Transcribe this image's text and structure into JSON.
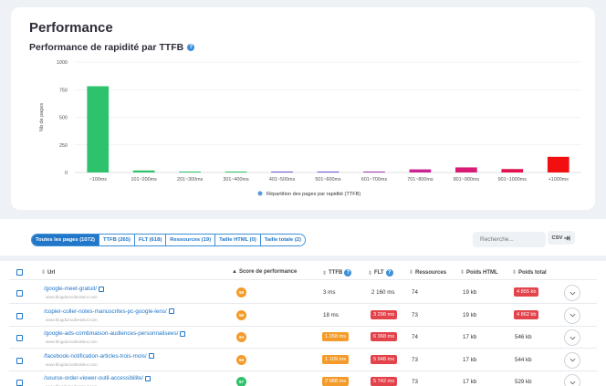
{
  "page_title": "Performance",
  "chart_title": "Performance de rapidité par TTFB",
  "help_icon": "?",
  "chart_data": {
    "type": "bar",
    "categories": [
      "~100ms",
      "101~200ms",
      "201~300ms",
      "301~400ms",
      "401~500ms",
      "501~600ms",
      "601~700ms",
      "701~800ms",
      "801~900ms",
      "901~1000ms",
      "+1000ms"
    ],
    "values": [
      781,
      18,
      1,
      1,
      2,
      6,
      8,
      28,
      46,
      31,
      142
    ],
    "colors": [
      "#2ec26c",
      "#2ec26c",
      "#2ec26c",
      "#2ec26c",
      "#6a56d6",
      "#6a56d6",
      "#a33ca8",
      "#c8238f",
      "#d81b74",
      "#e3124f",
      "#f20f10"
    ],
    "yticks": [
      "0",
      "250",
      "500",
      "750",
      "1000"
    ],
    "ylim": [
      0,
      1000
    ],
    "ylabel": "Nb de pages",
    "legend": "Répartition des pages par rapidité (TTFB)",
    "legend_color": "#5b9bd5",
    "grid": true
  },
  "tabs": [
    {
      "label": "Toutes les pages (1072)",
      "active": true
    },
    {
      "label": "TTFB (265)",
      "active": false
    },
    {
      "label": "FLT (618)",
      "active": false
    },
    {
      "label": "Ressources (19)",
      "active": false
    },
    {
      "label": "Taille HTML (0)",
      "active": false
    },
    {
      "label": "Taille totale (2)",
      "active": false
    }
  ],
  "search": {
    "placeholder": "Recherche..."
  },
  "csv_label": "CSV",
  "table": {
    "headers": {
      "url": "Url",
      "score": "Score de performance",
      "ttfb": "TTFB",
      "flt": "FLT",
      "resources": "Ressources",
      "html_weight": "Poids HTML",
      "total_weight": "Poids total"
    },
    "rows": [
      {
        "url": "/google-meet-gratuit/",
        "site": "www.blogdumoderateur.com",
        "score": "58",
        "score_color": "#f39c2b",
        "ttfb": "3 ms",
        "ttfb_color": "",
        "flt": "2 160 ms",
        "flt_color": "",
        "resources": "74",
        "html": "19 kb",
        "total": "4 855 kb",
        "total_color": "#e3434b"
      },
      {
        "url": "/copier-coller-notes-manuscrites-pc-google-lens/",
        "site": "www.blogdumoderateur.com",
        "score": "58",
        "score_color": "#f39c2b",
        "ttfb": "18 ms",
        "ttfb_color": "",
        "flt": "3 298 ms",
        "flt_color": "#e3434b",
        "resources": "73",
        "html": "19 kb",
        "total": "4 862 kb",
        "total_color": "#e3434b"
      },
      {
        "url": "/google-ads-combinaison-audiences-personnalisees/",
        "site": "www.blogdumoderateur.com",
        "score": "64",
        "score_color": "#f39c2b",
        "ttfb": "1 268 ms",
        "ttfb_color": "#f39c2b",
        "flt": "6 368 ms",
        "flt_color": "#e3434b",
        "resources": "74",
        "html": "17 kb",
        "total": "546 kb",
        "total_color": ""
      },
      {
        "url": "/facebook-notification-articles-trois-mois/",
        "site": "www.blogdumoderateur.com",
        "score": "66",
        "score_color": "#f39c2b",
        "ttfb": "1 109 ms",
        "ttfb_color": "#f39c2b",
        "flt": "5 948 ms",
        "flt_color": "#e3434b",
        "resources": "73",
        "html": "17 kb",
        "total": "544 kb",
        "total_color": ""
      },
      {
        "url": "/source-order-viewer-outil-accessibilite/",
        "site": "www.blogdumoderateur.com",
        "score": "67",
        "score_color": "#2ec26c",
        "ttfb": "2 988 ms",
        "ttfb_color": "#f39c2b",
        "flt": "5 742 ms",
        "flt_color": "#e3434b",
        "resources": "73",
        "html": "17 kb",
        "total": "529 kb",
        "total_color": ""
      }
    ]
  }
}
